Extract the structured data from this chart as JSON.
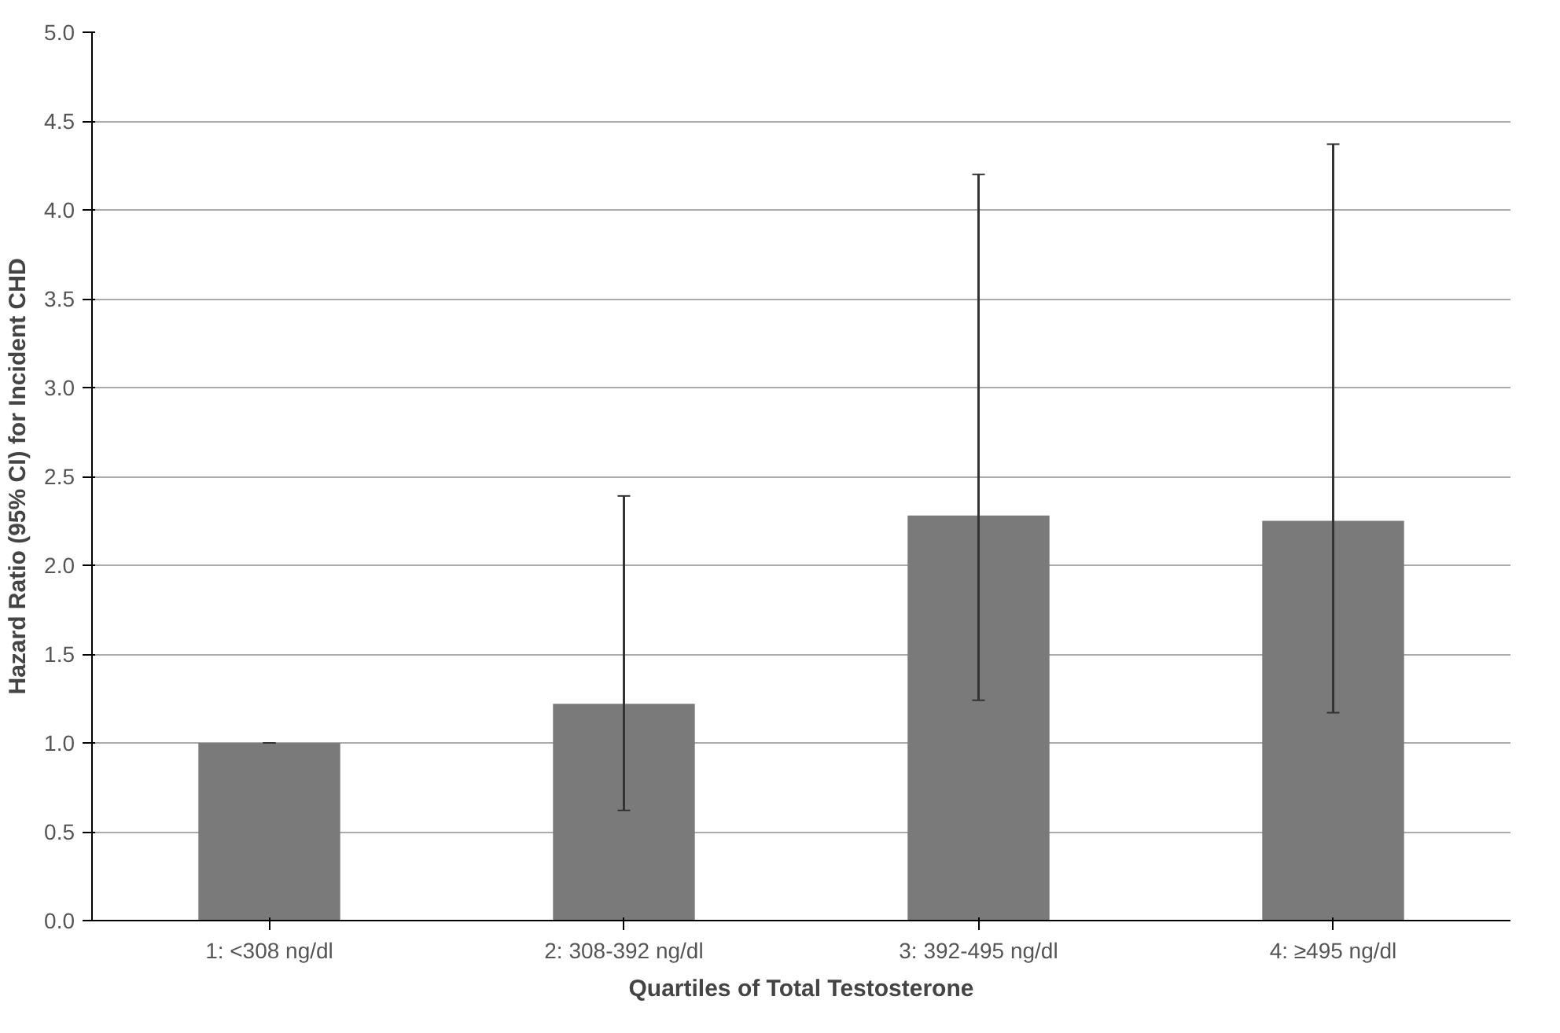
{
  "chart_data": {
    "type": "bar",
    "xlabel": "Quartiles of Total Testosterone",
    "ylabel": "Hazard Ratio (95% CI) for Incident CHD",
    "categories": [
      "1: <308 ng/dl",
      "2: 308-392 ng/dl",
      "3: 392-495 ng/dl",
      "4: ≥495 ng/dl"
    ],
    "values": [
      1.0,
      1.22,
      2.28,
      2.25
    ],
    "errors": [
      [
        1.0,
        1.0
      ],
      [
        0.62,
        2.39
      ],
      [
        1.24,
        4.2
      ],
      [
        1.17,
        4.37
      ]
    ],
    "color": "#7a7a7a",
    "ylim": [
      0,
      5
    ],
    "yticks": [
      {
        "value": 0,
        "label": "0.0"
      },
      {
        "value": 0.5,
        "label": "0.5"
      },
      {
        "value": 1,
        "label": "1.0"
      },
      {
        "value": 1.5,
        "label": "1.5"
      },
      {
        "value": 2,
        "label": "2.0"
      },
      {
        "value": 2.5,
        "label": "2.5"
      },
      {
        "value": 3,
        "label": "3.0"
      },
      {
        "value": 3.5,
        "label": "3.5"
      },
      {
        "value": 4,
        "label": "4.0"
      },
      {
        "value": 4.5,
        "label": "4.5"
      },
      {
        "value": 5,
        "label": "5.0"
      }
    ],
    "grid": "y"
  }
}
